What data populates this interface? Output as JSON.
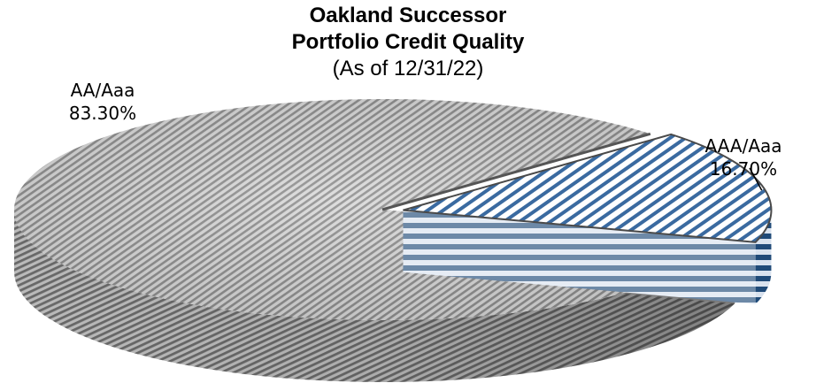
{
  "chart_data": {
    "type": "pie",
    "title_lines": [
      "Oakland Successor",
      "Portfolio Credit Quality"
    ],
    "subtitle": "(As of 12/31/22)",
    "slices": [
      {
        "name": "AA/Aaa",
        "value": 83.3,
        "label": "83.30%",
        "color": "#a0a0a0",
        "pattern": "gray-diagonal"
      },
      {
        "name": "AAA/Aaa",
        "value": 16.7,
        "label": "16.70%",
        "color": "#2f5f94",
        "pattern": "blue-diagonal"
      }
    ],
    "style": "3d-exploded-slice"
  }
}
